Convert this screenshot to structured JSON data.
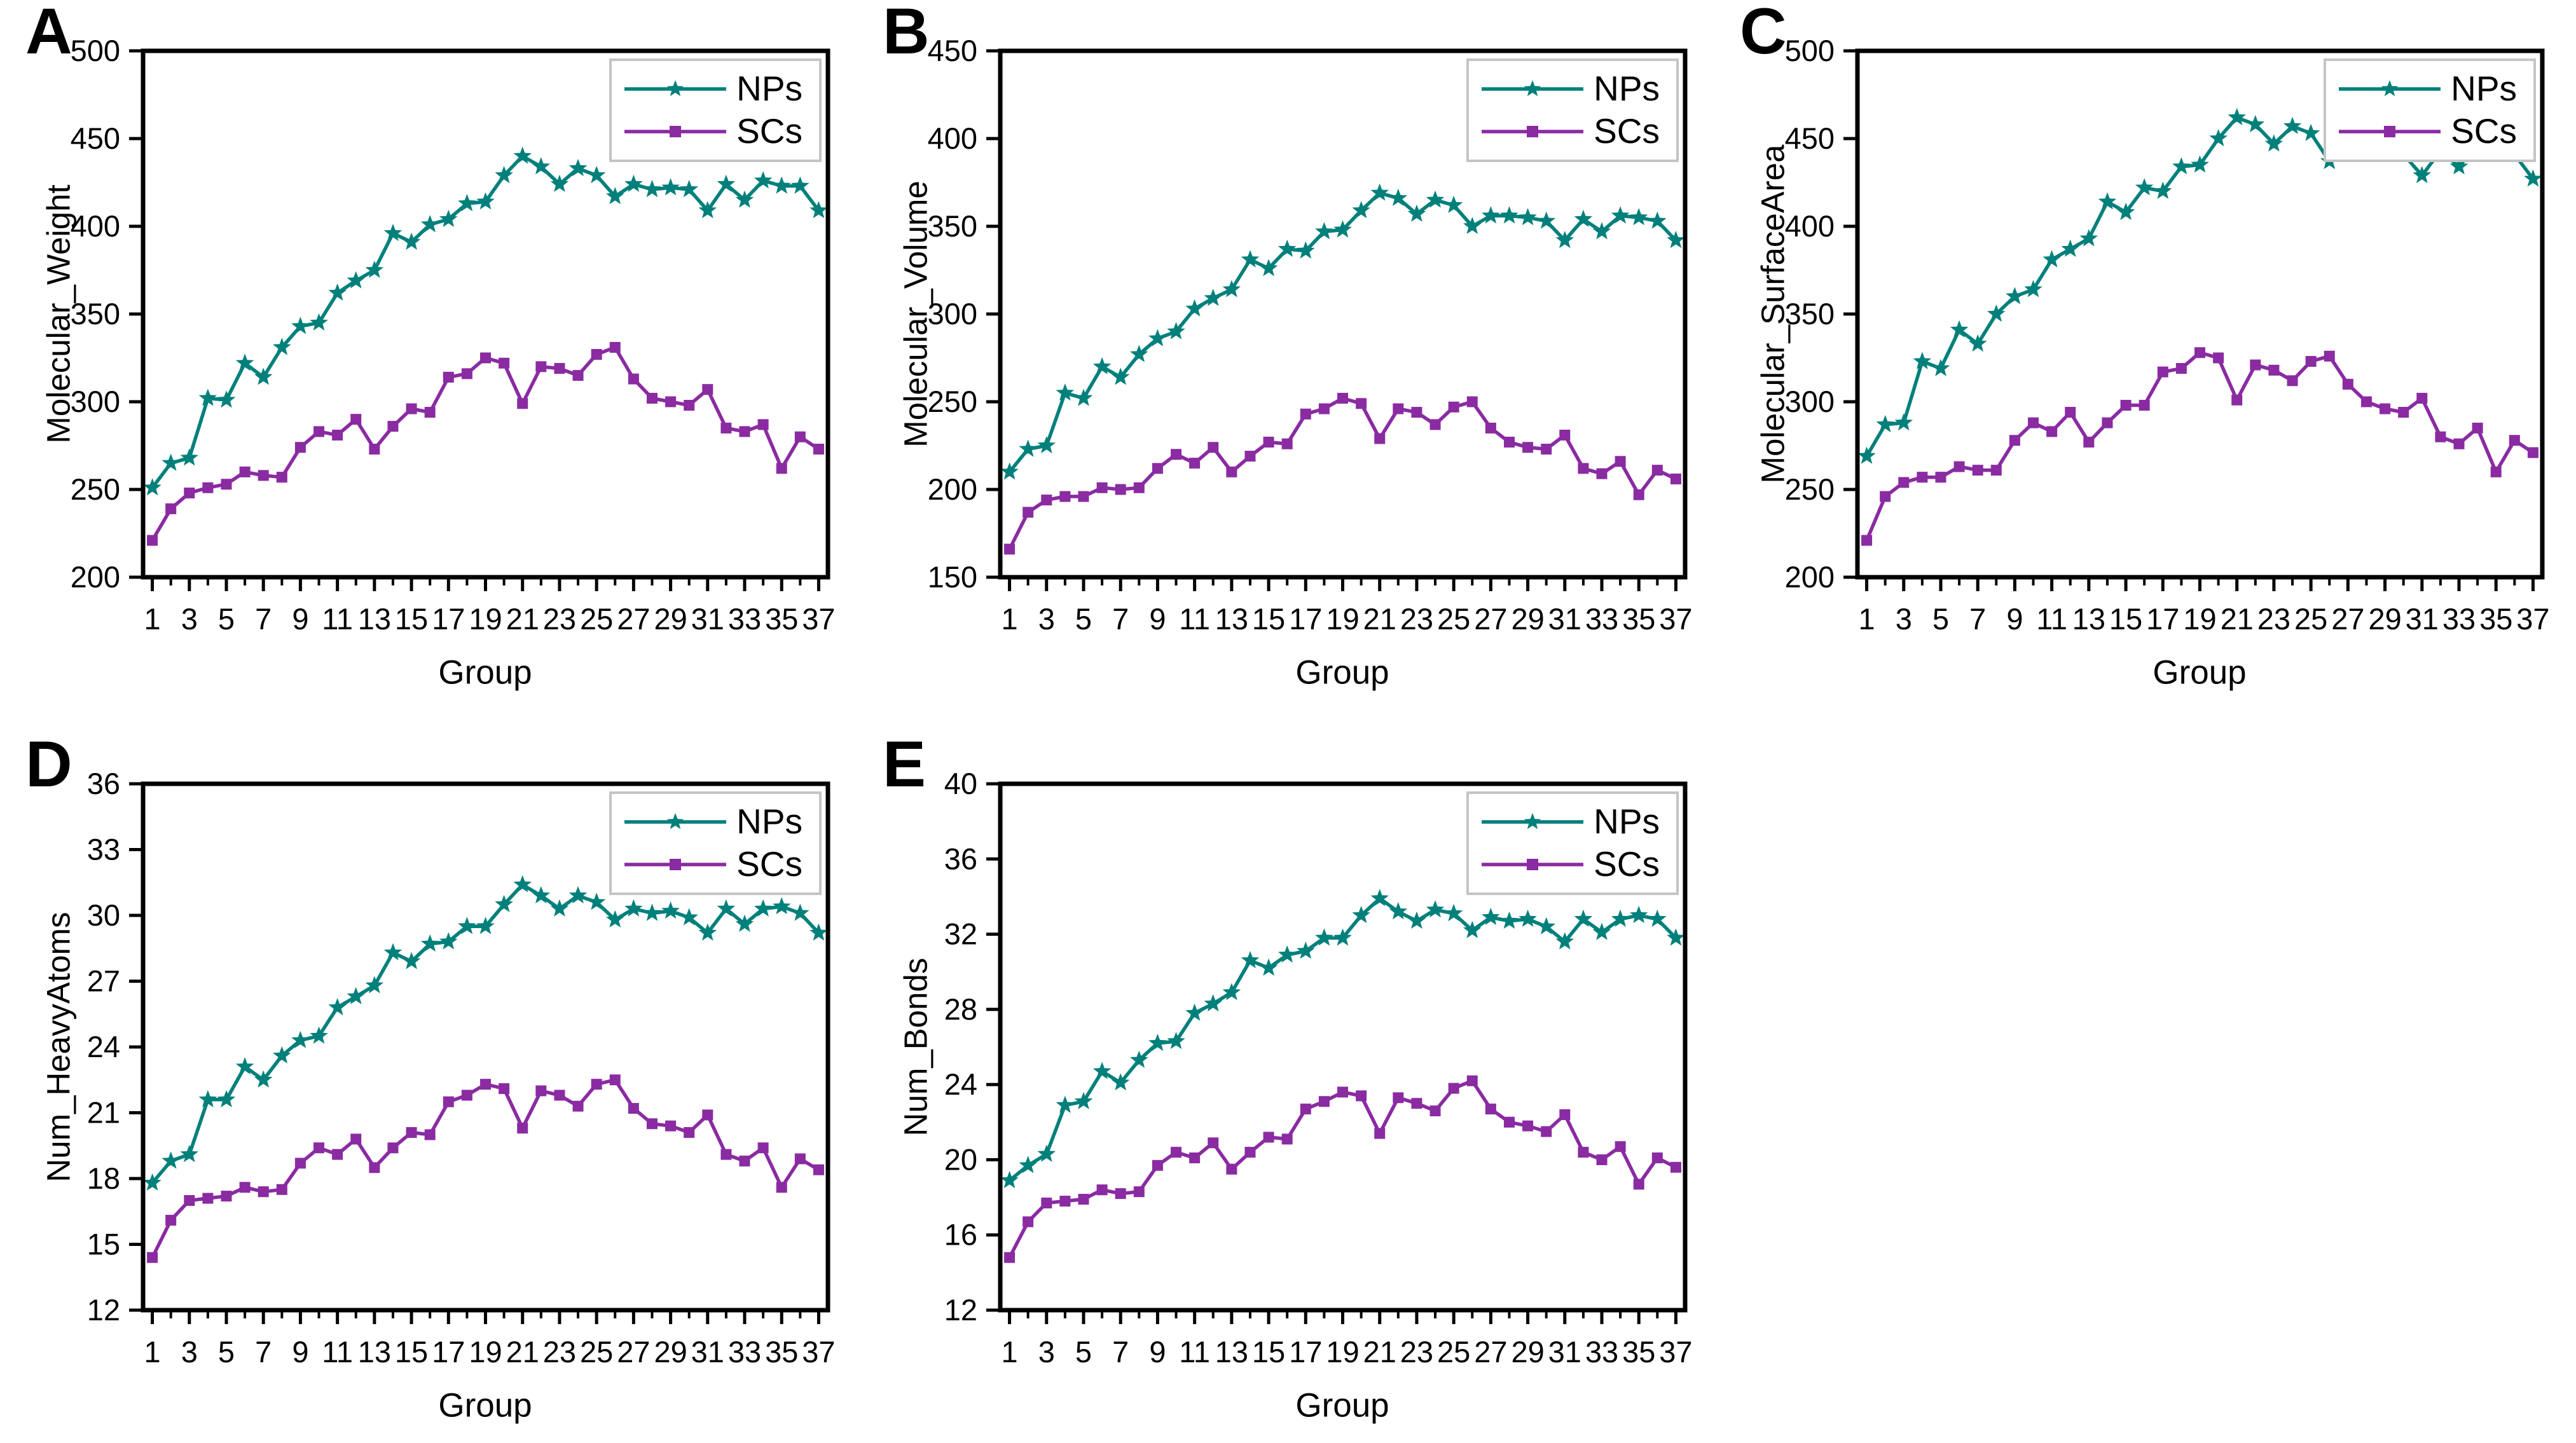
{
  "shared": {
    "xlabel": "Group"
  },
  "legend": {
    "nps_label": "NPs",
    "scs_label": "SCs"
  },
  "colors": {
    "nps": "#00807b",
    "scs": "#8a2ba2",
    "axis": "#000000",
    "legend_border": "#c4c4c4",
    "background": "#ffffff"
  },
  "markers": {
    "nps": "star",
    "scs": "square"
  },
  "x_values": [
    1,
    2,
    3,
    4,
    5,
    6,
    7,
    8,
    9,
    10,
    11,
    12,
    13,
    14,
    15,
    16,
    17,
    18,
    19,
    20,
    21,
    22,
    23,
    24,
    25,
    26,
    27,
    28,
    29,
    30,
    31,
    32,
    33,
    34,
    35,
    36,
    37
  ],
  "x_tick_labels": [
    1,
    3,
    5,
    7,
    9,
    11,
    13,
    15,
    17,
    19,
    21,
    23,
    25,
    27,
    29,
    31,
    33,
    35,
    37
  ],
  "chart_data": [
    {
      "panel_letter": "A",
      "type": "line",
      "title": "",
      "xlabel": "Group",
      "ylabel": "Molecular_Weight",
      "ylim": [
        200,
        500
      ],
      "ytick_step": 50,
      "grid": false,
      "legend_position": "top-right",
      "series": [
        {
          "name": "NPs",
          "marker": "star",
          "color": "#00807b",
          "values": [
            251,
            265,
            268,
            302,
            301,
            322,
            314,
            331,
            343,
            345,
            362,
            369,
            375,
            396,
            391,
            401,
            404,
            413,
            414,
            429,
            440,
            434,
            424,
            433,
            429,
            417,
            424,
            421,
            422,
            421,
            409,
            424,
            415,
            426,
            423,
            423,
            409
          ]
        },
        {
          "name": "SCs",
          "marker": "square",
          "color": "#8a2ba2",
          "values": [
            221,
            239,
            248,
            251,
            253,
            260,
            258,
            257,
            274,
            283,
            281,
            290,
            273,
            286,
            296,
            294,
            314,
            316,
            325,
            322,
            299,
            320,
            319,
            315,
            327,
            331,
            313,
            302,
            300,
            298,
            307,
            285,
            283,
            287,
            262,
            280,
            273
          ]
        }
      ]
    },
    {
      "panel_letter": "B",
      "type": "line",
      "title": "",
      "xlabel": "Group",
      "ylabel": "Molecular_Volume",
      "ylim": [
        150,
        450
      ],
      "ytick_step": 50,
      "grid": false,
      "legend_position": "top-right",
      "series": [
        {
          "name": "NPs",
          "marker": "star",
          "color": "#00807b",
          "values": [
            210,
            223,
            225,
            255,
            252,
            270,
            264,
            277,
            286,
            290,
            303,
            309,
            314,
            331,
            326,
            337,
            336,
            347,
            348,
            359,
            369,
            366,
            357,
            365,
            362,
            350,
            356,
            356,
            355,
            353,
            342,
            354,
            347,
            356,
            355,
            353,
            342
          ]
        },
        {
          "name": "SCs",
          "marker": "square",
          "color": "#8a2ba2",
          "values": [
            166,
            187,
            194,
            196,
            196,
            201,
            200,
            201,
            212,
            220,
            215,
            224,
            210,
            219,
            227,
            226,
            243,
            246,
            252,
            249,
            229,
            246,
            244,
            237,
            247,
            250,
            235,
            227,
            224,
            223,
            231,
            212,
            209,
            216,
            197,
            211,
            206
          ]
        }
      ]
    },
    {
      "panel_letter": "C",
      "type": "line",
      "title": "",
      "xlabel": "Group",
      "ylabel": "Molecular_SurfaceArea",
      "ylim": [
        200,
        500
      ],
      "ytick_step": 50,
      "grid": false,
      "legend_position": "top-right",
      "series": [
        {
          "name": "NPs",
          "marker": "star",
          "color": "#00807b",
          "values": [
            269,
            287,
            288,
            323,
            319,
            341,
            333,
            350,
            360,
            364,
            381,
            387,
            393,
            414,
            408,
            422,
            420,
            434,
            435,
            450,
            462,
            458,
            447,
            457,
            453,
            437,
            444,
            445,
            444,
            441,
            429,
            443,
            434,
            447,
            445,
            441,
            427
          ]
        },
        {
          "name": "SCs",
          "marker": "square",
          "color": "#8a2ba2",
          "values": [
            221,
            246,
            254,
            257,
            257,
            263,
            261,
            261,
            278,
            288,
            283,
            294,
            277,
            288,
            298,
            298,
            317,
            319,
            328,
            325,
            301,
            321,
            318,
            312,
            323,
            326,
            310,
            300,
            296,
            294,
            302,
            280,
            276,
            285,
            260,
            278,
            271
          ]
        }
      ]
    },
    {
      "panel_letter": "D",
      "type": "line",
      "title": "",
      "xlabel": "Group",
      "ylabel": "Num_HeavyAtoms",
      "ylim": [
        12,
        36
      ],
      "ytick_step": 3,
      "grid": false,
      "legend_position": "top-right",
      "series": [
        {
          "name": "NPs",
          "marker": "star",
          "color": "#00807b",
          "values": [
            17.8,
            18.8,
            19.1,
            21.6,
            21.6,
            23.1,
            22.5,
            23.6,
            24.3,
            24.5,
            25.8,
            26.3,
            26.8,
            28.3,
            27.9,
            28.7,
            28.8,
            29.5,
            29.5,
            30.5,
            31.4,
            30.9,
            30.3,
            30.9,
            30.6,
            29.8,
            30.3,
            30.1,
            30.2,
            29.9,
            29.2,
            30.3,
            29.6,
            30.3,
            30.4,
            30.1,
            29.2
          ]
        },
        {
          "name": "SCs",
          "marker": "square",
          "color": "#8a2ba2",
          "values": [
            14.4,
            16.1,
            17.0,
            17.1,
            17.2,
            17.6,
            17.4,
            17.5,
            18.7,
            19.4,
            19.1,
            19.8,
            18.5,
            19.4,
            20.1,
            20.0,
            21.5,
            21.8,
            22.3,
            22.1,
            20.3,
            22.0,
            21.8,
            21.3,
            22.3,
            22.5,
            21.2,
            20.5,
            20.4,
            20.1,
            20.9,
            19.1,
            18.8,
            19.4,
            17.6,
            18.9,
            18.4
          ]
        }
      ]
    },
    {
      "panel_letter": "E",
      "type": "line",
      "title": "",
      "xlabel": "Group",
      "ylabel": "Num_Bonds",
      "ylim": [
        12,
        40
      ],
      "ytick_step": 4,
      "grid": false,
      "legend_position": "top-right",
      "series": [
        {
          "name": "NPs",
          "marker": "star",
          "color": "#00807b",
          "values": [
            18.9,
            19.7,
            20.3,
            22.9,
            23.1,
            24.7,
            24.1,
            25.3,
            26.2,
            26.3,
            27.8,
            28.3,
            28.9,
            30.6,
            30.2,
            30.9,
            31.1,
            31.8,
            31.8,
            33.0,
            33.9,
            33.2,
            32.7,
            33.3,
            33.1,
            32.2,
            32.9,
            32.7,
            32.8,
            32.4,
            31.6,
            32.8,
            32.1,
            32.8,
            33.0,
            32.8,
            31.8
          ]
        },
        {
          "name": "SCs",
          "marker": "square",
          "color": "#8a2ba2",
          "values": [
            14.8,
            16.7,
            17.7,
            17.8,
            17.9,
            18.4,
            18.2,
            18.3,
            19.7,
            20.4,
            20.1,
            20.9,
            19.5,
            20.4,
            21.2,
            21.1,
            22.7,
            23.1,
            23.6,
            23.4,
            21.4,
            23.3,
            23.0,
            22.6,
            23.8,
            24.2,
            22.7,
            22.0,
            21.8,
            21.5,
            22.4,
            20.4,
            20.0,
            20.7,
            18.7,
            20.1,
            19.6
          ]
        }
      ]
    }
  ]
}
